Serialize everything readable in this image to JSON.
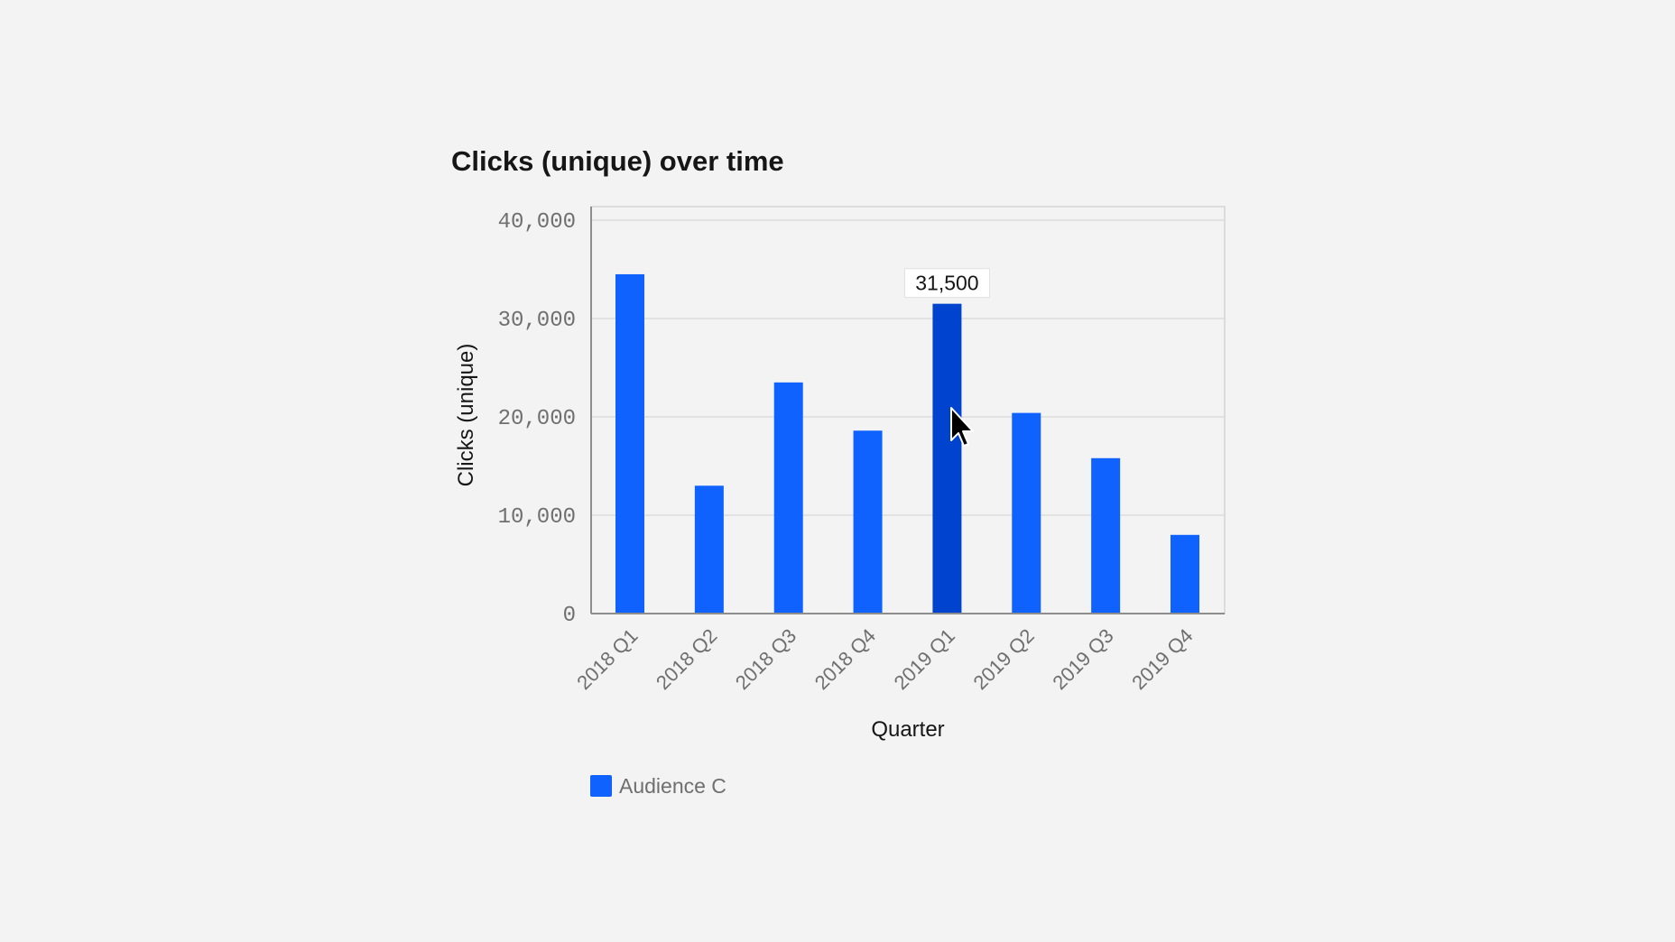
{
  "chart_data": {
    "type": "bar",
    "title": "Clicks (unique) over time",
    "xlabel": "Quarter",
    "ylabel": "Clicks (unique)",
    "ylim": [
      0,
      40000
    ],
    "yticks": [
      0,
      10000,
      20000,
      30000,
      40000
    ],
    "ytick_labels": [
      "0",
      "10,000",
      "20,000",
      "30,000",
      "40,000"
    ],
    "grid": true,
    "categories": [
      "2018 Q1",
      "2018 Q2",
      "2018 Q3",
      "2018 Q4",
      "2019 Q1",
      "2019 Q2",
      "2019 Q3",
      "2019 Q4"
    ],
    "series": [
      {
        "name": "Audience C",
        "values": [
          34500,
          13000,
          23500,
          18600,
          31500,
          20400,
          15800,
          8000
        ],
        "color": "#0f62fe"
      }
    ],
    "highlight": {
      "category": "2019 Q1",
      "color": "#0043ce",
      "tooltip": "31,500"
    },
    "legend": {
      "position": "bottom-left",
      "entries": [
        "Audience C"
      ]
    }
  }
}
